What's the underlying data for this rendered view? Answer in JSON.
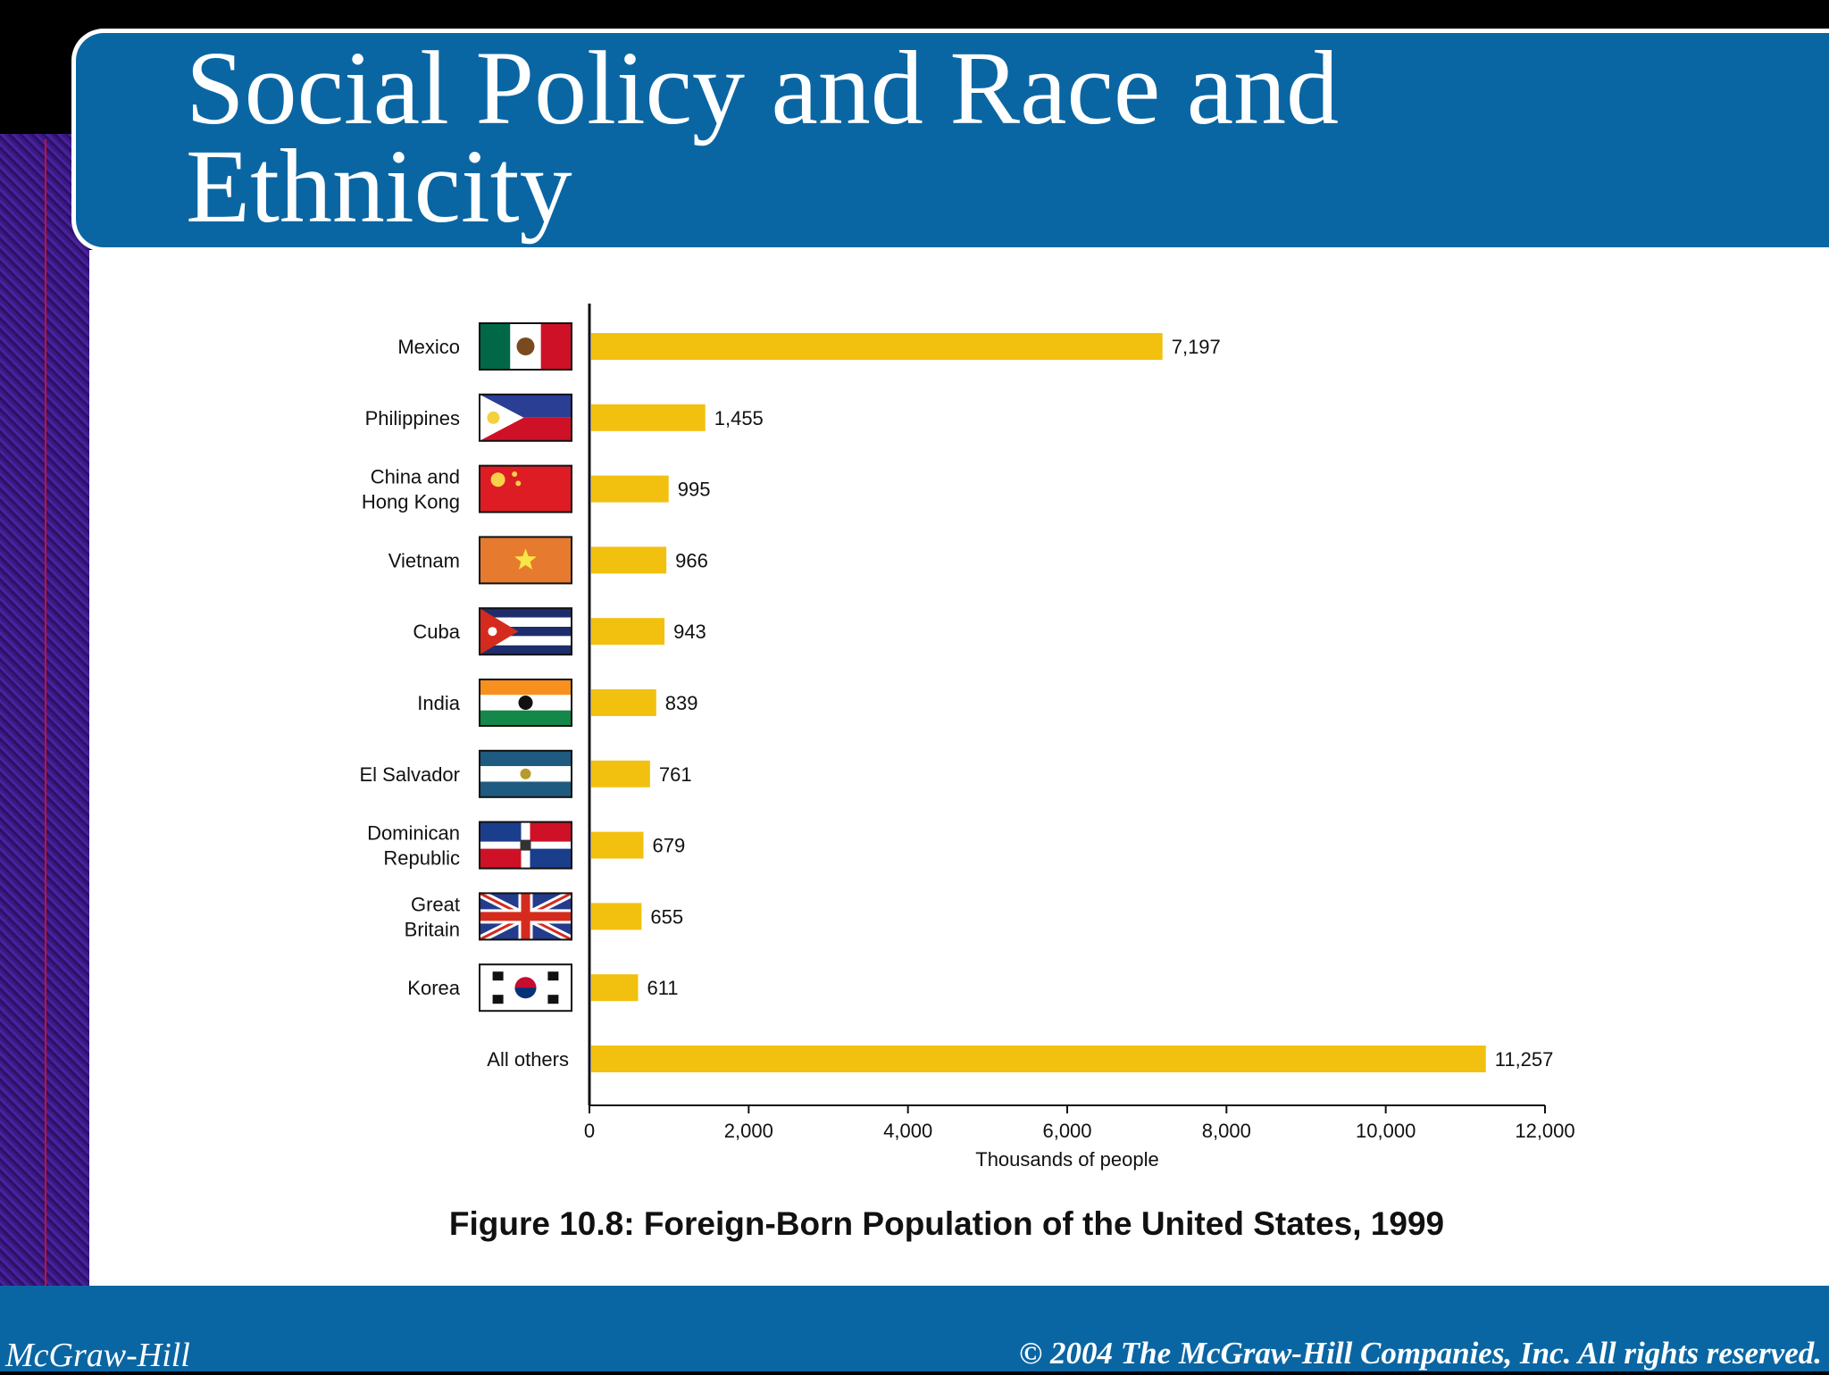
{
  "slide": {
    "title_line1": "Social Policy and Race and",
    "title_line2": "Ethnicity",
    "caption": "Figure 10.8: Foreign-Born Population of the United States, 1999",
    "footer_left": "McGraw-Hill",
    "footer_right": "© 2004 The McGraw-Hill Companies, Inc. All rights reserved."
  },
  "chart_data": {
    "type": "bar",
    "orientation": "horizontal",
    "title": "Figure 10.8: Foreign-Born Population of the United States, 1999",
    "xlabel": "Thousands of people",
    "ylabel": "",
    "xlim": [
      0,
      12000
    ],
    "xticks": [
      0,
      2000,
      4000,
      6000,
      8000,
      10000,
      12000
    ],
    "xtick_labels": [
      "0",
      "2,000",
      "4,000",
      "6,000",
      "8,000",
      "10,000",
      "12,000"
    ],
    "grid": false,
    "bar_color": "#f2c110",
    "categories": [
      {
        "lines": [
          "Mexico"
        ],
        "flag": "mexico",
        "value": 7197,
        "label": "7,197"
      },
      {
        "lines": [
          "Philippines"
        ],
        "flag": "philippines",
        "value": 1455,
        "label": "1,455"
      },
      {
        "lines": [
          "China and",
          "Hong Kong"
        ],
        "flag": "china",
        "value": 995,
        "label": "995"
      },
      {
        "lines": [
          "Vietnam"
        ],
        "flag": "vietnam",
        "value": 966,
        "label": "966"
      },
      {
        "lines": [
          "Cuba"
        ],
        "flag": "cuba",
        "value": 943,
        "label": "943"
      },
      {
        "lines": [
          "India"
        ],
        "flag": "india",
        "value": 839,
        "label": "839"
      },
      {
        "lines": [
          "El Salvador"
        ],
        "flag": "el-salvador",
        "value": 761,
        "label": "761"
      },
      {
        "lines": [
          "Dominican",
          "Republic"
        ],
        "flag": "dominican-republic",
        "value": 679,
        "label": "679"
      },
      {
        "lines": [
          "Great",
          "Britain"
        ],
        "flag": "great-britain",
        "value": 655,
        "label": "655"
      },
      {
        "lines": [
          "Korea"
        ],
        "flag": "korea",
        "value": 611,
        "label": "611"
      },
      {
        "lines": [
          "All others"
        ],
        "flag": "",
        "value": 11257,
        "label": "11,257"
      }
    ]
  }
}
